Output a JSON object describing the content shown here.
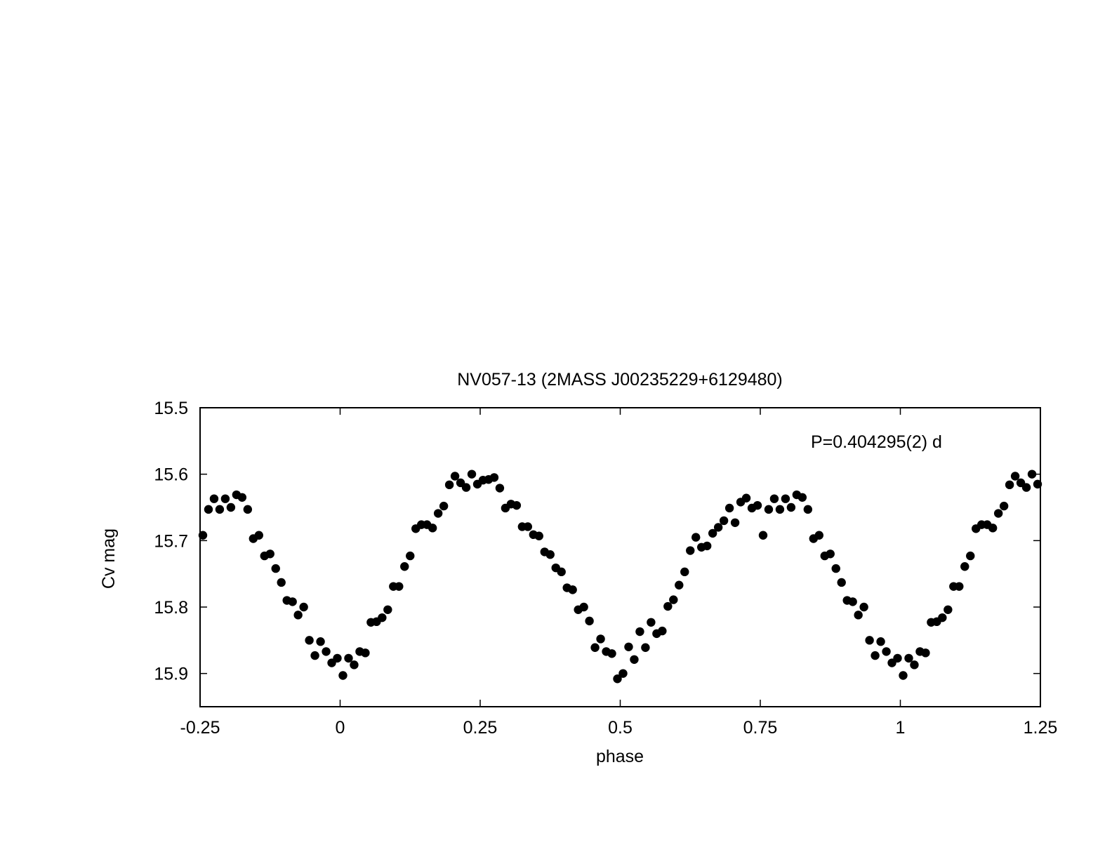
{
  "chart_data": {
    "type": "scatter",
    "title": "NV057-13 (2MASS J00235229+6129480)",
    "xlabel": "phase",
    "ylabel": "Cv mag",
    "annotation": "P=0.404295(2) d",
    "xlim": [
      -0.25,
      1.25
    ],
    "ylim": [
      15.5,
      15.95
    ],
    "y_inverted": true,
    "grid": false,
    "legend": "none",
    "marker_color": "#000000",
    "xticks": [
      {
        "value": -0.25,
        "label": "-0.25"
      },
      {
        "value": 0,
        "label": "0"
      },
      {
        "value": 0.25,
        "label": "0.25"
      },
      {
        "value": 0.5,
        "label": "0.5"
      },
      {
        "value": 0.75,
        "label": "0.75"
      },
      {
        "value": 1,
        "label": "1"
      },
      {
        "value": 1.25,
        "label": "1.25"
      }
    ],
    "yticks": [
      {
        "value": 15.5,
        "label": "15.5"
      },
      {
        "value": 15.6,
        "label": "15.6"
      },
      {
        "value": 15.7,
        "label": "15.7"
      },
      {
        "value": 15.8,
        "label": "15.8"
      },
      {
        "value": 15.9,
        "label": "15.9"
      }
    ],
    "points": [
      [
        -0.245,
        15.692
      ],
      [
        -0.235,
        15.653
      ],
      [
        -0.225,
        15.637
      ],
      [
        -0.215,
        15.653
      ],
      [
        -0.205,
        15.637
      ],
      [
        -0.195,
        15.65
      ],
      [
        -0.185,
        15.631
      ],
      [
        -0.175,
        15.635
      ],
      [
        -0.165,
        15.653
      ],
      [
        -0.155,
        15.697
      ],
      [
        -0.145,
        15.692
      ],
      [
        -0.135,
        15.723
      ],
      [
        -0.125,
        15.72
      ],
      [
        -0.115,
        15.742
      ],
      [
        -0.105,
        15.763
      ],
      [
        -0.095,
        15.79
      ],
      [
        -0.085,
        15.792
      ],
      [
        -0.075,
        15.812
      ],
      [
        -0.065,
        15.8
      ],
      [
        -0.055,
        15.85
      ],
      [
        -0.045,
        15.873
      ],
      [
        -0.035,
        15.852
      ],
      [
        -0.025,
        15.867
      ],
      [
        -0.015,
        15.884
      ],
      [
        -0.005,
        15.877
      ],
      [
        0.005,
        15.903
      ],
      [
        0.015,
        15.877
      ],
      [
        0.025,
        15.887
      ],
      [
        0.035,
        15.867
      ],
      [
        0.045,
        15.869
      ],
      [
        0.055,
        15.823
      ],
      [
        0.065,
        15.822
      ],
      [
        0.075,
        15.816
      ],
      [
        0.085,
        15.804
      ],
      [
        0.095,
        15.769
      ],
      [
        0.105,
        15.769
      ],
      [
        0.115,
        15.739
      ],
      [
        0.125,
        15.723
      ],
      [
        0.135,
        15.682
      ],
      [
        0.145,
        15.676
      ],
      [
        0.155,
        15.676
      ],
      [
        0.165,
        15.681
      ],
      [
        0.175,
        15.659
      ],
      [
        0.185,
        15.648
      ],
      [
        0.195,
        15.616
      ],
      [
        0.205,
        15.603
      ],
      [
        0.215,
        15.613
      ],
      [
        0.225,
        15.62
      ],
      [
        0.235,
        15.6
      ],
      [
        0.245,
        15.615
      ],
      [
        0.255,
        15.609
      ],
      [
        0.265,
        15.608
      ],
      [
        0.275,
        15.605
      ],
      [
        0.285,
        15.621
      ],
      [
        0.295,
        15.651
      ],
      [
        0.305,
        15.645
      ],
      [
        0.315,
        15.647
      ],
      [
        0.325,
        15.679
      ],
      [
        0.335,
        15.679
      ],
      [
        0.345,
        15.691
      ],
      [
        0.355,
        15.693
      ],
      [
        0.365,
        15.717
      ],
      [
        0.375,
        15.721
      ],
      [
        0.385,
        15.741
      ],
      [
        0.395,
        15.747
      ],
      [
        0.405,
        15.771
      ],
      [
        0.415,
        15.774
      ],
      [
        0.425,
        15.804
      ],
      [
        0.435,
        15.8
      ],
      [
        0.445,
        15.821
      ],
      [
        0.455,
        15.861
      ],
      [
        0.465,
        15.848
      ],
      [
        0.475,
        15.867
      ],
      [
        0.485,
        15.87
      ],
      [
        0.495,
        15.908
      ],
      [
        0.505,
        15.9
      ],
      [
        0.515,
        15.86
      ],
      [
        0.525,
        15.879
      ],
      [
        0.535,
        15.837
      ],
      [
        0.545,
        15.861
      ],
      [
        0.555,
        15.823
      ],
      [
        0.565,
        15.84
      ],
      [
        0.575,
        15.836
      ],
      [
        0.585,
        15.799
      ],
      [
        0.595,
        15.789
      ],
      [
        0.605,
        15.767
      ],
      [
        0.615,
        15.747
      ],
      [
        0.625,
        15.715
      ],
      [
        0.635,
        15.695
      ],
      [
        0.645,
        15.71
      ],
      [
        0.655,
        15.708
      ],
      [
        0.665,
        15.689
      ],
      [
        0.675,
        15.68
      ],
      [
        0.685,
        15.67
      ],
      [
        0.695,
        15.651
      ],
      [
        0.705,
        15.673
      ],
      [
        0.715,
        15.642
      ],
      [
        0.725,
        15.636
      ],
      [
        0.735,
        15.651
      ],
      [
        0.745,
        15.647
      ],
      [
        0.755,
        15.692
      ],
      [
        0.765,
        15.653
      ],
      [
        0.775,
        15.637
      ],
      [
        0.785,
        15.653
      ],
      [
        0.795,
        15.637
      ],
      [
        0.805,
        15.65
      ],
      [
        0.815,
        15.631
      ],
      [
        0.825,
        15.635
      ],
      [
        0.835,
        15.653
      ],
      [
        0.845,
        15.697
      ],
      [
        0.855,
        15.692
      ],
      [
        0.865,
        15.723
      ],
      [
        0.875,
        15.72
      ],
      [
        0.885,
        15.742
      ],
      [
        0.895,
        15.763
      ],
      [
        0.905,
        15.79
      ],
      [
        0.915,
        15.792
      ],
      [
        0.925,
        15.812
      ],
      [
        0.935,
        15.8
      ],
      [
        0.945,
        15.85
      ],
      [
        0.955,
        15.873
      ],
      [
        0.965,
        15.852
      ],
      [
        0.975,
        15.867
      ],
      [
        0.985,
        15.884
      ],
      [
        0.995,
        15.877
      ],
      [
        1.005,
        15.903
      ],
      [
        1.015,
        15.877
      ],
      [
        1.025,
        15.887
      ],
      [
        1.035,
        15.867
      ],
      [
        1.045,
        15.869
      ],
      [
        1.055,
        15.823
      ],
      [
        1.065,
        15.822
      ],
      [
        1.075,
        15.816
      ],
      [
        1.085,
        15.804
      ],
      [
        1.095,
        15.769
      ],
      [
        1.105,
        15.769
      ],
      [
        1.115,
        15.739
      ],
      [
        1.125,
        15.723
      ],
      [
        1.135,
        15.682
      ],
      [
        1.145,
        15.676
      ],
      [
        1.155,
        15.676
      ],
      [
        1.165,
        15.681
      ],
      [
        1.175,
        15.659
      ],
      [
        1.185,
        15.648
      ],
      [
        1.195,
        15.616
      ],
      [
        1.205,
        15.603
      ],
      [
        1.215,
        15.613
      ],
      [
        1.225,
        15.62
      ],
      [
        1.235,
        15.6
      ],
      [
        1.245,
        15.615
      ]
    ]
  }
}
